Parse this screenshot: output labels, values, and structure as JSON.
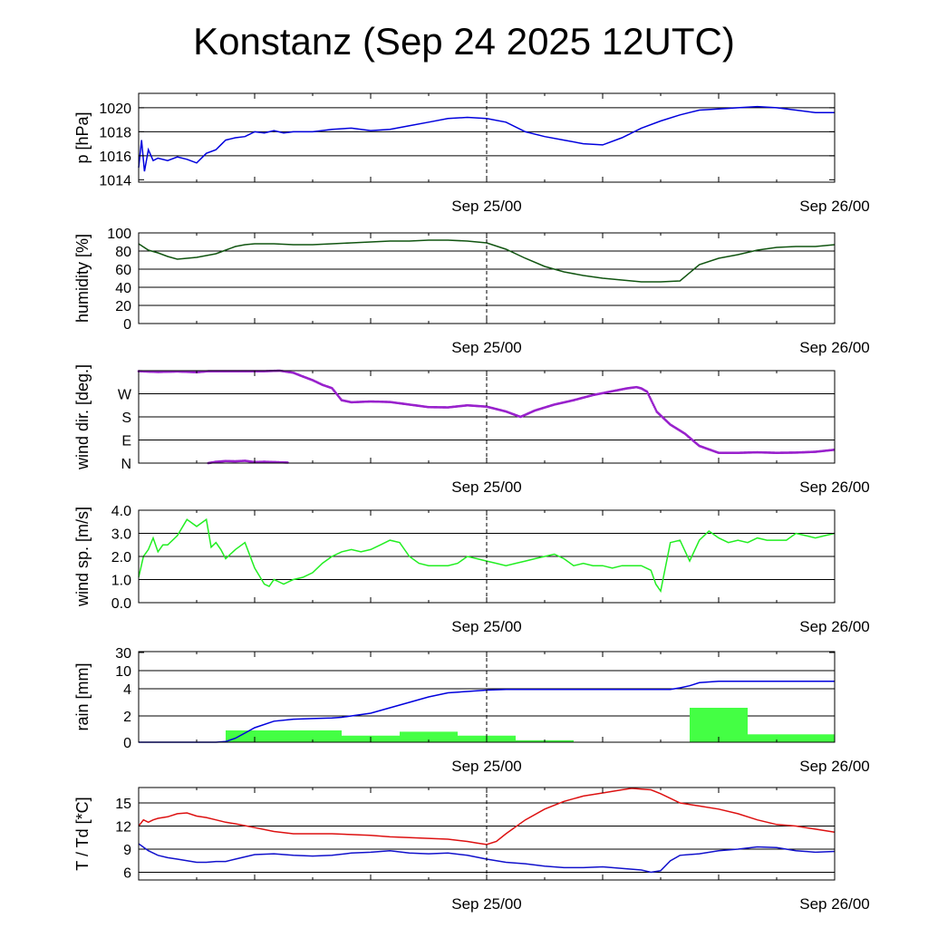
{
  "title": "Konstanz (Sep 24 2025 12UTC)",
  "chart_data": [
    {
      "type": "line",
      "ylabel": "p [hPa]",
      "ylim": [
        1013.8,
        1021.2
      ],
      "yticks": [
        "1014",
        "1016",
        "1018",
        "1020"
      ],
      "ytick_values": [
        1014,
        1016,
        1018,
        1020
      ],
      "grid_values": [
        1016,
        1018,
        1020
      ],
      "xticks": [
        "Sep 25/00",
        "Sep 26/00"
      ],
      "series": [
        {
          "color": "#0000dd",
          "hours": [
            0,
            0.3,
            0.6,
            1,
            1.5,
            2,
            3,
            4,
            5,
            6,
            7,
            8,
            9,
            10,
            11,
            12,
            13,
            14,
            15,
            16,
            18,
            20,
            22,
            24,
            26,
            28,
            30,
            32,
            34,
            36,
            38,
            40,
            42,
            44,
            46,
            48,
            50,
            52,
            54,
            56,
            58,
            60,
            62,
            64,
            66,
            68,
            70,
            72
          ],
          "values": [
            1015.0,
            1017.3,
            1014.7,
            1016.5,
            1015.6,
            1015.8,
            1015.6,
            1015.9,
            1015.7,
            1015.4,
            1016.2,
            1016.5,
            1017.3,
            1017.5,
            1017.6,
            1018.0,
            1017.9,
            1018.1,
            1017.9,
            1018.0,
            1018.0,
            1018.2,
            1018.3,
            1018.1,
            1018.2,
            1018.5,
            1018.8,
            1019.1,
            1019.2,
            1019.1,
            1018.8,
            1018.0,
            1017.6,
            1017.3,
            1017.0,
            1016.9,
            1017.5,
            1018.3,
            1018.9,
            1019.4,
            1019.8,
            1019.9,
            1020.0,
            1020.1,
            1020.0,
            1019.8,
            1019.6,
            1019.6
          ]
        }
      ]
    },
    {
      "type": "line",
      "ylabel": "humidity [%]",
      "ylim": [
        0,
        100
      ],
      "yticks": [
        "0",
        "20",
        "40",
        "60",
        "80",
        "100"
      ],
      "ytick_values": [
        0,
        20,
        40,
        60,
        80,
        100
      ],
      "grid_values": [
        20,
        40,
        60,
        80
      ],
      "xticks": [
        "Sep 25/00",
        "Sep 26/00"
      ],
      "series": [
        {
          "color": "#115511",
          "hours": [
            0,
            1,
            2,
            3,
            4,
            5,
            6,
            7,
            8,
            9,
            10,
            11,
            12,
            14,
            16,
            18,
            20,
            22,
            24,
            26,
            28,
            30,
            32,
            34,
            36,
            38,
            40,
            42,
            44,
            46,
            48,
            50,
            52,
            54,
            56,
            58,
            60,
            62,
            64,
            66,
            68,
            70,
            72
          ],
          "values": [
            88,
            81,
            78,
            74,
            71,
            72,
            73,
            75,
            77,
            81,
            85,
            87,
            88,
            88,
            87,
            87,
            88,
            89,
            90,
            91,
            91,
            92,
            92,
            91,
            89,
            82,
            72,
            63,
            57,
            53,
            50,
            48,
            46,
            46,
            47,
            65,
            72,
            76,
            81,
            84,
            85,
            85,
            87
          ]
        }
      ]
    },
    {
      "type": "scatter",
      "ylabel": "wind dir. [deg.]",
      "ylim": [
        0,
        360
      ],
      "yticks": [
        "N",
        "E",
        "S",
        "W"
      ],
      "ytick_values": [
        0,
        90,
        180,
        270
      ],
      "grid_values": [
        90,
        180,
        270
      ],
      "xticks": [
        "Sep 25/00",
        "Sep 26/00"
      ],
      "series": [
        {
          "color": "#9922cc",
          "hours": [
            0,
            2,
            4,
            6,
            7.2,
            13,
            14.6,
            16,
            16.8,
            18,
            19,
            20,
            21,
            22,
            24,
            26,
            28,
            30,
            32,
            34,
            36,
            38,
            39.5,
            41,
            43,
            45,
            47,
            49,
            50.5,
            51.5,
            52,
            52.6,
            53.6,
            55,
            56.5,
            58,
            60,
            62,
            64,
            66,
            68,
            70,
            72
          ],
          "values": [
            358,
            355,
            357,
            354,
            358,
            358,
            360,
            352,
            340,
            323,
            305,
            292,
            245,
            237,
            240,
            238,
            228,
            218,
            217,
            225,
            220,
            201,
            180,
            205,
            228,
            245,
            265,
            280,
            291,
            296,
            291,
            278,
            200,
            150,
            115,
            67,
            40,
            40,
            42,
            40,
            41,
            44,
            52
          ]
        },
        {
          "color": "#9922cc",
          "hours": [
            7.2,
            8,
            9,
            10,
            11,
            12,
            13,
            15.5
          ],
          "values": [
            0,
            5,
            8,
            7,
            9,
            4,
            5,
            2
          ]
        }
      ]
    },
    {
      "type": "line",
      "ylabel": "wind sp. [m/s]",
      "ylim": [
        0,
        4
      ],
      "yticks": [
        "0.0",
        "1.0",
        "2.0",
        "3.0",
        "4.0"
      ],
      "ytick_values": [
        0,
        1,
        2,
        3,
        4
      ],
      "grid_values": [
        1,
        2,
        3
      ],
      "xticks": [
        "Sep 25/00",
        "Sep 26/00"
      ],
      "series": [
        {
          "color": "#22ee22",
          "hours": [
            0,
            0.5,
            1,
            1.5,
            2,
            2.5,
            3,
            4,
            5,
            6,
            7,
            7.5,
            8,
            8.5,
            9,
            10,
            11,
            12,
            13,
            13.5,
            14,
            14.5,
            15,
            16,
            17,
            18,
            19,
            20,
            21,
            22,
            23,
            24,
            25,
            26,
            27,
            28,
            29,
            30,
            31,
            32,
            33,
            34,
            35,
            36,
            37,
            38,
            39,
            40,
            41,
            42,
            43,
            44,
            45,
            46,
            47,
            48,
            49,
            50,
            51,
            52,
            53,
            53.5,
            54,
            55,
            56,
            57,
            58,
            59,
            60,
            61,
            62,
            63,
            64,
            65,
            66,
            67,
            68,
            69,
            70,
            71,
            72
          ],
          "values": [
            1.1,
            2.0,
            2.3,
            2.8,
            2.2,
            2.5,
            2.5,
            2.9,
            3.6,
            3.3,
            3.6,
            2.4,
            2.6,
            2.3,
            1.9,
            2.3,
            2.6,
            1.5,
            0.8,
            0.7,
            1.0,
            0.9,
            0.8,
            1.0,
            1.1,
            1.3,
            1.7,
            2.0,
            2.2,
            2.3,
            2.2,
            2.3,
            2.5,
            2.7,
            2.6,
            2.0,
            1.7,
            1.6,
            1.6,
            1.6,
            1.7,
            2.0,
            1.9,
            1.8,
            1.7,
            1.6,
            1.7,
            1.8,
            1.9,
            2.0,
            2.1,
            1.9,
            1.6,
            1.7,
            1.6,
            1.6,
            1.5,
            1.6,
            1.6,
            1.6,
            1.4,
            0.8,
            0.5,
            2.6,
            2.7,
            1.8,
            2.7,
            3.1,
            2.8,
            2.6,
            2.7,
            2.6,
            2.8,
            2.7,
            2.7,
            2.7,
            3.0,
            2.9,
            2.8,
            2.9,
            3.0
          ]
        }
      ]
    },
    {
      "type": "bar+line",
      "ylabel": "rain [mm]",
      "ylim": [
        0,
        30
      ],
      "yticks": [
        "0",
        "2",
        "4",
        "10",
        "30"
      ],
      "ytick_values": [
        0,
        2,
        4,
        10,
        30
      ],
      "grid_values": [
        2,
        4,
        10
      ],
      "xticks": [
        "Sep 25/00",
        "Sep 26/00"
      ],
      "bars": {
        "color": "#44ff44",
        "starts": [
          9,
          15,
          21,
          27,
          33,
          39,
          45,
          51,
          57,
          63
        ],
        "ends": [
          15,
          21,
          27,
          33,
          39,
          45,
          51,
          57,
          63,
          72
        ],
        "values": [
          0.9,
          0.9,
          0.5,
          0.8,
          0.5,
          0.15,
          0,
          0,
          2.6,
          0.6
        ]
      },
      "series": [
        {
          "color": "#0000dd",
          "hours": [
            0,
            8,
            9,
            10,
            11,
            12,
            14,
            16,
            18,
            20,
            21,
            22,
            24,
            26,
            28,
            30,
            32,
            34,
            36,
            38,
            40,
            42,
            44,
            46,
            48,
            50,
            52,
            54,
            55,
            56,
            57,
            58,
            60,
            62,
            64,
            66,
            68,
            70,
            72
          ],
          "values": [
            0,
            0,
            0.05,
            0.3,
            0.7,
            1.1,
            1.6,
            1.75,
            1.8,
            1.85,
            1.9,
            2.0,
            2.2,
            2.6,
            3.0,
            3.4,
            3.7,
            3.8,
            3.9,
            3.95,
            3.95,
            3.95,
            3.95,
            3.95,
            3.95,
            3.95,
            3.95,
            3.95,
            3.95,
            4.3,
            5.0,
            6.0,
            6.5,
            6.5,
            6.5,
            6.5,
            6.5,
            6.5,
            6.5
          ]
        }
      ]
    },
    {
      "type": "line",
      "ylabel": "T / Td [*C]",
      "ylim": [
        5,
        17
      ],
      "yticks": [
        "6",
        "9",
        "12",
        "15"
      ],
      "ytick_values": [
        6,
        9,
        12,
        15
      ],
      "grid_values": [
        6,
        9,
        12,
        15
      ],
      "xticks": [
        "Sep 25/00",
        "Sep 26/00"
      ],
      "series": [
        {
          "color": "#dd1111",
          "hours": [
            0,
            0.5,
            1,
            1.5,
            2,
            3,
            4,
            5,
            6,
            7,
            8,
            9,
            10,
            12,
            14,
            16,
            18,
            20,
            22,
            24,
            26,
            28,
            30,
            32,
            34,
            35,
            36,
            37,
            38,
            40,
            42,
            44,
            46,
            48,
            50,
            51,
            52,
            53,
            54,
            55,
            56,
            58,
            60,
            62,
            64,
            66,
            68,
            70,
            72
          ],
          "values": [
            12.0,
            12.8,
            12.5,
            12.8,
            13.0,
            13.2,
            13.6,
            13.7,
            13.3,
            13.1,
            12.8,
            12.5,
            12.3,
            11.8,
            11.3,
            11.0,
            11.0,
            11.0,
            10.9,
            10.8,
            10.6,
            10.5,
            10.4,
            10.3,
            10.0,
            9.8,
            9.6,
            10.0,
            11.0,
            12.8,
            14.2,
            15.2,
            15.9,
            16.3,
            16.7,
            16.9,
            16.8,
            16.7,
            16.2,
            15.6,
            15.0,
            14.6,
            14.2,
            13.6,
            12.8,
            12.2,
            12.0,
            11.6,
            11.2
          ]
        },
        {
          "color": "#1111cc",
          "hours": [
            0,
            1,
            2,
            3,
            4,
            5,
            6,
            7,
            8,
            9,
            10,
            11,
            12,
            14,
            16,
            18,
            20,
            22,
            24,
            26,
            28,
            30,
            32,
            34,
            36,
            38,
            40,
            42,
            44,
            46,
            48,
            50,
            52,
            53,
            54,
            55,
            56,
            58,
            60,
            62,
            64,
            66,
            68,
            70,
            72
          ],
          "values": [
            9.7,
            8.8,
            8.2,
            7.9,
            7.7,
            7.5,
            7.3,
            7.3,
            7.4,
            7.4,
            7.7,
            8.0,
            8.3,
            8.4,
            8.2,
            8.1,
            8.2,
            8.5,
            8.6,
            8.8,
            8.5,
            8.4,
            8.5,
            8.2,
            7.7,
            7.3,
            7.1,
            6.8,
            6.6,
            6.6,
            6.7,
            6.5,
            6.3,
            6.0,
            6.2,
            7.5,
            8.2,
            8.4,
            8.8,
            9.0,
            9.3,
            9.2,
            8.8,
            8.6,
            8.7
          ]
        }
      ]
    }
  ]
}
